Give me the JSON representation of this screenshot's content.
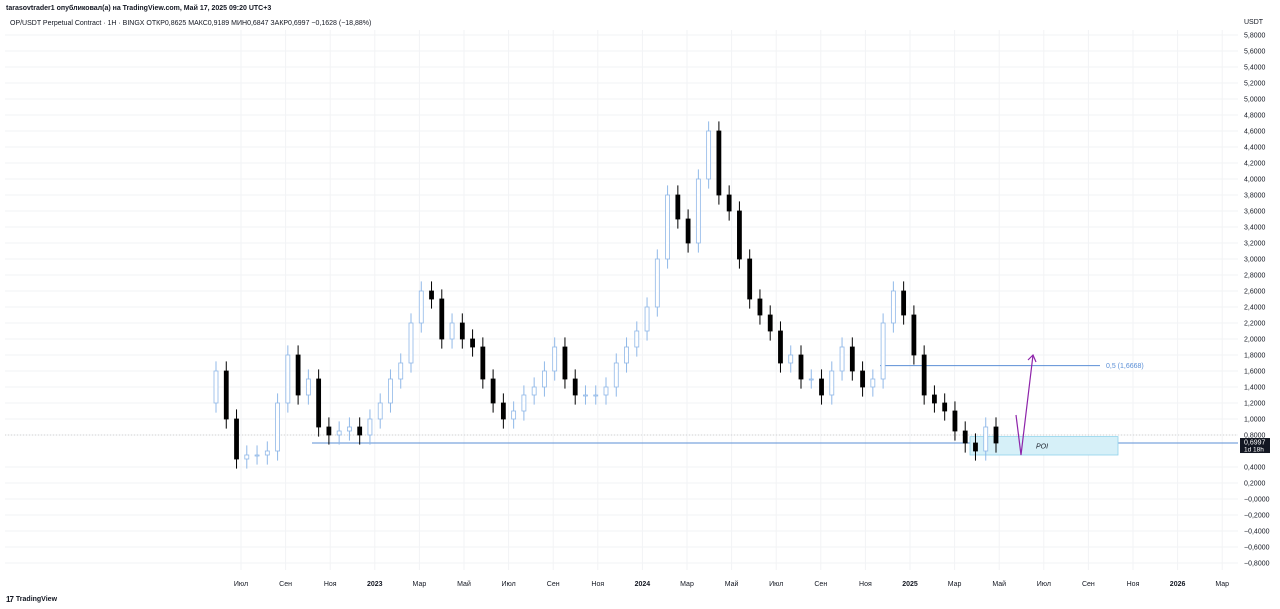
{
  "header": {
    "publisher_line": "tarasovtrader1 опубликовал(а) на TradingView.com, Май 17, 2025 09:20 UTC+3",
    "symbol_line": "OP/USDT Perpetual Contract · 1H · BINGX  ОТКР0,8625  МАКС0,9189  МИН0,6847  ЗАКР0,6997  −0,1628 (−18,88%)",
    "currency": "USDT"
  },
  "footer": {
    "logo_text": "TradingView",
    "logo_icon": "tradingview-logo-icon"
  },
  "colors": {
    "up_candle": "#90b8e8",
    "down_candle": "#000000",
    "level_line": "#5b8fd6",
    "poi_fill": "#d6f0f8",
    "poi_border": "#8fd3ec",
    "arrow": "#8e24aa",
    "price_tag": "#131722"
  },
  "chart_data": {
    "type": "candlestick",
    "y_axis": {
      "ylim": [
        -0.9,
        5.9
      ],
      "ticks": [
        "5,8000",
        "5,6000",
        "5,4000",
        "5,2000",
        "5,0000",
        "4,8000",
        "4,6000",
        "4,4000",
        "4,2000",
        "4,0000",
        "3,8000",
        "3,6000",
        "3,4000",
        "3,2000",
        "3,0000",
        "2,8000",
        "2,6000",
        "2,4000",
        "2,2000",
        "2,0000",
        "1,8000",
        "1,6000",
        "1,4000",
        "1,2000",
        "1,0000",
        "0,8000",
        "0,4000",
        "0,2000",
        "−0,0000",
        "−0,2000",
        "−0,4000",
        "−0,6000",
        "−0,8000"
      ]
    },
    "x_axis": {
      "labels": [
        {
          "text": "Июл",
          "m": 6,
          "bold": false
        },
        {
          "text": "Сен",
          "m": 8,
          "bold": false
        },
        {
          "text": "Ноя",
          "m": 10,
          "bold": false
        },
        {
          "text": "2023",
          "m": 12,
          "bold": true
        },
        {
          "text": "Мар",
          "m": 14,
          "bold": false
        },
        {
          "text": "Май",
          "m": 16,
          "bold": false
        },
        {
          "text": "Июл",
          "m": 18,
          "bold": false
        },
        {
          "text": "Сен",
          "m": 20,
          "bold": false
        },
        {
          "text": "Ноя",
          "m": 22,
          "bold": false
        },
        {
          "text": "2024",
          "m": 24,
          "bold": true
        },
        {
          "text": "Мар",
          "m": 26,
          "bold": false
        },
        {
          "text": "Май",
          "m": 28,
          "bold": false
        },
        {
          "text": "Июл",
          "m": 30,
          "bold": false
        },
        {
          "text": "Сен",
          "m": 32,
          "bold": false
        },
        {
          "text": "Ноя",
          "m": 34,
          "bold": false
        },
        {
          "text": "2025",
          "m": 36,
          "bold": true
        },
        {
          "text": "Мар",
          "m": 38,
          "bold": false
        },
        {
          "text": "Май",
          "m": 40,
          "bold": false
        },
        {
          "text": "Июл",
          "m": 42,
          "bold": false
        },
        {
          "text": "Сен",
          "m": 44,
          "bold": false
        },
        {
          "text": "Ноя",
          "m": 46,
          "bold": false
        },
        {
          "text": "2026",
          "m": 48,
          "bold": true
        },
        {
          "text": "Мар",
          "m": 50,
          "bold": false
        }
      ]
    },
    "candles_close": [
      1.6,
      1.0,
      0.5,
      0.55,
      0.55,
      0.6,
      1.2,
      1.8,
      1.3,
      1.5,
      0.9,
      0.8,
      0.85,
      0.9,
      0.8,
      1.0,
      1.2,
      1.5,
      1.7,
      2.2,
      2.6,
      2.5,
      2.0,
      2.2,
      2.0,
      1.9,
      1.5,
      1.2,
      1.0,
      1.1,
      1.3,
      1.4,
      1.6,
      1.9,
      1.5,
      1.3,
      1.3,
      1.3,
      1.4,
      1.7,
      1.9,
      2.1,
      2.4,
      3.0,
      3.8,
      3.5,
      3.2,
      4.0,
      4.6,
      3.8,
      3.6,
      3.0,
      2.5,
      2.3,
      2.1,
      1.7,
      1.8,
      1.5,
      1.5,
      1.3,
      1.6,
      1.9,
      1.6,
      1.4,
      1.5,
      2.2,
      2.6,
      2.3,
      1.8,
      1.3,
      1.2,
      1.1,
      0.85,
      0.7,
      0.6,
      0.9,
      0.7
    ],
    "levels": [
      {
        "label": "0,5 (1,6668)",
        "price": 1.6668
      },
      {
        "price": 0.7
      }
    ],
    "current_price": {
      "value": "0,6997",
      "countdown": "1d 18h",
      "price": 0.6997
    },
    "poi": {
      "label": "POI",
      "low": 0.55,
      "high": 0.78
    },
    "projection": {
      "from_price": 0.55,
      "to_price": 1.8
    }
  }
}
